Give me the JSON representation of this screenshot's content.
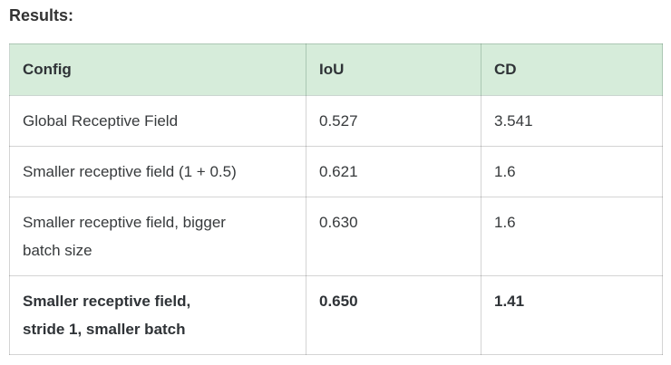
{
  "page": {
    "title": "Results:"
  },
  "colors": {
    "header_bg": "#d6ecda",
    "header_border": "#a9cfb0",
    "body_border": "#d4d4d4",
    "text": "#333333",
    "background": "#ffffff"
  },
  "table": {
    "columns": [
      {
        "label": "Config"
      },
      {
        "label": "IoU"
      },
      {
        "label": "CD"
      }
    ],
    "rows": [
      {
        "config": "Global Receptive Field",
        "iou": "0.527",
        "cd": "3.541",
        "bold": false
      },
      {
        "config": "Smaller receptive field (1 + 0.5)",
        "iou": "0.621",
        "cd": "1.6",
        "bold": false
      },
      {
        "config": "Smaller receptive field, bigger\nbatch size",
        "iou": "0.630",
        "cd": "1.6",
        "bold": false
      },
      {
        "config": "Smaller receptive field,\nstride 1, smaller batch",
        "iou": "0.650",
        "cd": "1.41",
        "bold": true
      }
    ]
  }
}
